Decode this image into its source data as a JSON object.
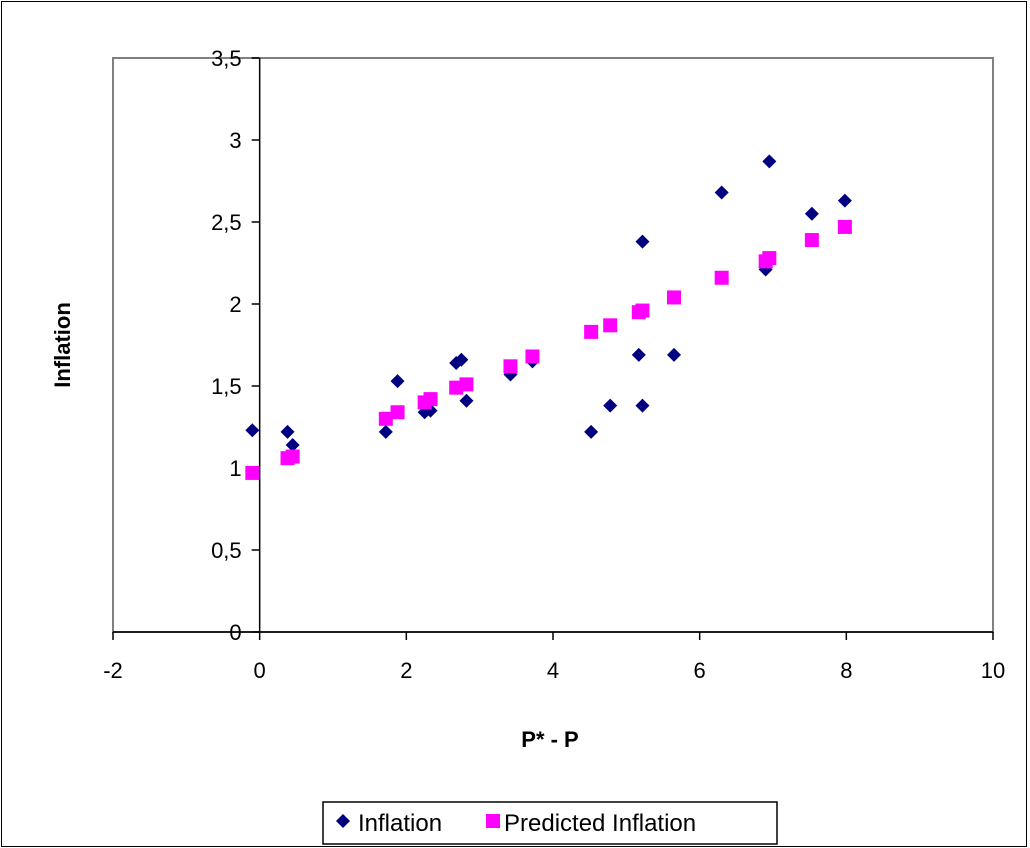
{
  "chart_data": {
    "type": "scatter",
    "xlabel": "P* - P",
    "ylabel": "Inflation",
    "xlim": [
      -2,
      10
    ],
    "ylim": [
      0,
      3.5
    ],
    "x_ticks": [
      -2,
      0,
      2,
      4,
      6,
      8,
      10
    ],
    "y_ticks": [
      0,
      0.5,
      1,
      1.5,
      2,
      2.5,
      3,
      3.5
    ],
    "y_tick_labels": [
      "0",
      "0,5",
      "1",
      "1,5",
      "2",
      "2,5",
      "3",
      "3,5"
    ],
    "grid": false,
    "legend_position": "bottom",
    "series": [
      {
        "name": "Inflation",
        "marker": "diamond",
        "color": "#000080",
        "points": [
          [
            -0.1,
            1.23
          ],
          [
            0.38,
            1.22
          ],
          [
            0.45,
            1.14
          ],
          [
            1.72,
            1.22
          ],
          [
            1.88,
            1.53
          ],
          [
            2.25,
            1.34
          ],
          [
            2.33,
            1.35
          ],
          [
            2.68,
            1.64
          ],
          [
            2.75,
            1.66
          ],
          [
            2.82,
            1.41
          ],
          [
            3.42,
            1.57
          ],
          [
            3.72,
            1.65
          ],
          [
            4.52,
            1.22
          ],
          [
            4.78,
            1.38
          ],
          [
            5.17,
            1.69
          ],
          [
            5.22,
            1.38
          ],
          [
            5.22,
            2.38
          ],
          [
            5.65,
            1.69
          ],
          [
            6.3,
            2.68
          ],
          [
            6.9,
            2.21
          ],
          [
            6.95,
            2.87
          ],
          [
            7.53,
            2.55
          ],
          [
            7.98,
            2.63
          ]
        ]
      },
      {
        "name": "Predicted Inflation",
        "marker": "square",
        "color": "#ff00ff",
        "points": [
          [
            -0.1,
            0.97
          ],
          [
            0.38,
            1.06
          ],
          [
            0.45,
            1.07
          ],
          [
            1.72,
            1.3
          ],
          [
            1.88,
            1.34
          ],
          [
            2.25,
            1.4
          ],
          [
            2.33,
            1.42
          ],
          [
            2.68,
            1.49
          ],
          [
            2.82,
            1.51
          ],
          [
            3.42,
            1.62
          ],
          [
            3.72,
            1.68
          ],
          [
            4.52,
            1.83
          ],
          [
            4.78,
            1.87
          ],
          [
            5.17,
            1.95
          ],
          [
            5.22,
            1.96
          ],
          [
            5.65,
            2.04
          ],
          [
            6.3,
            2.16
          ],
          [
            6.9,
            2.26
          ],
          [
            6.95,
            2.28
          ],
          [
            7.53,
            2.39
          ],
          [
            7.98,
            2.47
          ]
        ]
      }
    ]
  }
}
